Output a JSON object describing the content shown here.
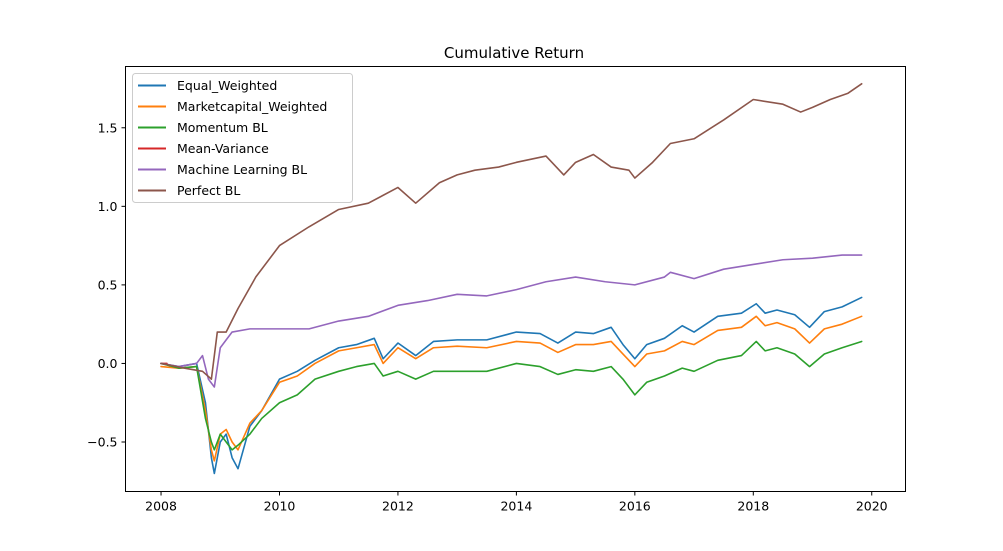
{
  "chart_data": {
    "type": "line",
    "title": "Cumulative Return",
    "xlabel": "",
    "ylabel": "",
    "xlim": [
      2007.4,
      2020.57
    ],
    "ylim": [
      -0.815,
      1.89
    ],
    "xticks": [
      2008,
      2010,
      2012,
      2014,
      2016,
      2018,
      2020
    ],
    "xtick_labels": [
      "2008",
      "2010",
      "2012",
      "2014",
      "2016",
      "2018",
      "2020"
    ],
    "yticks": [
      -0.5,
      0.0,
      0.5,
      1.0,
      1.5
    ],
    "ytick_labels": [
      "−0.5",
      "0.0",
      "0.5",
      "1.0",
      "1.5"
    ],
    "grid": false,
    "legend_position": "upper-left",
    "series": [
      {
        "name": "Equal_Weighted",
        "color": "#1f77b4",
        "x": [
          2008.0,
          2008.3,
          2008.6,
          2008.75,
          2008.85,
          2008.9,
          2009.0,
          2009.1,
          2009.2,
          2009.3,
          2009.5,
          2009.7,
          2010.0,
          2010.3,
          2010.6,
          2011.0,
          2011.3,
          2011.6,
          2011.75,
          2012.0,
          2012.3,
          2012.6,
          2013.0,
          2013.5,
          2014.0,
          2014.4,
          2014.7,
          2015.0,
          2015.3,
          2015.6,
          2015.8,
          2016.0,
          2016.2,
          2016.5,
          2016.8,
          2017.0,
          2017.4,
          2017.8,
          2018.05,
          2018.2,
          2018.4,
          2018.7,
          2018.95,
          2019.2,
          2019.5,
          2019.83
        ],
        "y": [
          0.0,
          -0.02,
          0.0,
          -0.25,
          -0.6,
          -0.7,
          -0.5,
          -0.45,
          -0.6,
          -0.67,
          -0.4,
          -0.3,
          -0.1,
          -0.05,
          0.02,
          0.1,
          0.12,
          0.16,
          0.03,
          0.13,
          0.05,
          0.14,
          0.15,
          0.15,
          0.2,
          0.19,
          0.13,
          0.2,
          0.19,
          0.23,
          0.12,
          0.03,
          0.12,
          0.16,
          0.24,
          0.2,
          0.3,
          0.32,
          0.38,
          0.32,
          0.34,
          0.31,
          0.23,
          0.33,
          0.36,
          0.42
        ]
      },
      {
        "name": "Marketcapital_Weighted",
        "color": "#ff7f0e",
        "x": [
          2008.0,
          2008.3,
          2008.6,
          2008.75,
          2008.85,
          2008.9,
          2009.0,
          2009.1,
          2009.2,
          2009.3,
          2009.5,
          2009.7,
          2010.0,
          2010.3,
          2010.6,
          2011.0,
          2011.3,
          2011.6,
          2011.75,
          2012.0,
          2012.3,
          2012.6,
          2013.0,
          2013.5,
          2014.0,
          2014.4,
          2014.7,
          2015.0,
          2015.3,
          2015.6,
          2015.8,
          2016.0,
          2016.2,
          2016.5,
          2016.8,
          2017.0,
          2017.4,
          2017.8,
          2018.05,
          2018.2,
          2018.4,
          2018.7,
          2018.95,
          2019.2,
          2019.5,
          2019.83
        ],
        "y": [
          -0.02,
          -0.03,
          -0.02,
          -0.3,
          -0.55,
          -0.62,
          -0.45,
          -0.42,
          -0.5,
          -0.55,
          -0.38,
          -0.3,
          -0.12,
          -0.08,
          0.0,
          0.08,
          0.1,
          0.12,
          0.0,
          0.1,
          0.03,
          0.1,
          0.11,
          0.1,
          0.14,
          0.13,
          0.07,
          0.12,
          0.12,
          0.14,
          0.06,
          -0.02,
          0.06,
          0.08,
          0.14,
          0.12,
          0.21,
          0.23,
          0.3,
          0.24,
          0.26,
          0.22,
          0.13,
          0.22,
          0.25,
          0.3
        ]
      },
      {
        "name": "Momentum BL",
        "color": "#2ca02c",
        "x": [
          2008.0,
          2008.3,
          2008.6,
          2008.75,
          2008.85,
          2008.9,
          2009.0,
          2009.1,
          2009.2,
          2009.3,
          2009.5,
          2009.7,
          2010.0,
          2010.3,
          2010.6,
          2011.0,
          2011.3,
          2011.6,
          2011.75,
          2012.0,
          2012.3,
          2012.6,
          2013.0,
          2013.5,
          2014.0,
          2014.4,
          2014.7,
          2015.0,
          2015.3,
          2015.6,
          2015.8,
          2016.0,
          2016.2,
          2016.5,
          2016.8,
          2017.0,
          2017.4,
          2017.8,
          2018.05,
          2018.2,
          2018.4,
          2018.7,
          2018.95,
          2019.2,
          2019.5,
          2019.83
        ],
        "y": [
          0.0,
          -0.03,
          -0.02,
          -0.35,
          -0.5,
          -0.55,
          -0.45,
          -0.5,
          -0.55,
          -0.52,
          -0.45,
          -0.35,
          -0.25,
          -0.2,
          -0.1,
          -0.05,
          -0.02,
          0.0,
          -0.08,
          -0.05,
          -0.1,
          -0.05,
          -0.05,
          -0.05,
          0.0,
          -0.02,
          -0.07,
          -0.04,
          -0.05,
          -0.02,
          -0.1,
          -0.2,
          -0.12,
          -0.08,
          -0.03,
          -0.05,
          0.02,
          0.05,
          0.14,
          0.08,
          0.1,
          0.06,
          -0.02,
          0.06,
          0.1,
          0.14
        ]
      },
      {
        "name": "Mean-Variance",
        "color": "#d62728",
        "x": [
          2008.0,
          2008.1
        ],
        "y": [
          0.0,
          0.0
        ]
      },
      {
        "name": "Machine Learning BL",
        "color": "#9467bd",
        "x": [
          2008.0,
          2008.3,
          2008.6,
          2008.7,
          2008.8,
          2008.9,
          2009.0,
          2009.2,
          2009.5,
          2010.0,
          2010.5,
          2011.0,
          2011.5,
          2012.0,
          2012.5,
          2013.0,
          2013.5,
          2014.0,
          2014.5,
          2015.0,
          2015.5,
          2016.0,
          2016.5,
          2016.6,
          2017.0,
          2017.5,
          2018.0,
          2018.5,
          2019.0,
          2019.5,
          2019.83
        ],
        "y": [
          0.0,
          -0.02,
          0.0,
          0.05,
          -0.1,
          -0.15,
          0.1,
          0.2,
          0.22,
          0.22,
          0.22,
          0.27,
          0.3,
          0.37,
          0.4,
          0.44,
          0.43,
          0.47,
          0.52,
          0.55,
          0.52,
          0.5,
          0.55,
          0.58,
          0.54,
          0.6,
          0.63,
          0.66,
          0.67,
          0.69,
          0.69
        ]
      },
      {
        "name": "Perfect BL",
        "color": "#8c564b",
        "x": [
          2008.0,
          2008.4,
          2008.7,
          2008.85,
          2008.95,
          2009.1,
          2009.3,
          2009.6,
          2010.0,
          2010.5,
          2011.0,
          2011.5,
          2012.0,
          2012.3,
          2012.7,
          2013.0,
          2013.3,
          2013.7,
          2014.0,
          2014.5,
          2014.8,
          2015.0,
          2015.3,
          2015.6,
          2015.9,
          2016.0,
          2016.3,
          2016.6,
          2017.0,
          2017.5,
          2018.0,
          2018.5,
          2018.8,
          2019.0,
          2019.3,
          2019.6,
          2019.83
        ],
        "y": [
          0.0,
          -0.03,
          -0.05,
          -0.1,
          0.2,
          0.2,
          0.35,
          0.55,
          0.75,
          0.87,
          0.98,
          1.02,
          1.12,
          1.02,
          1.15,
          1.2,
          1.23,
          1.25,
          1.28,
          1.32,
          1.2,
          1.28,
          1.33,
          1.25,
          1.23,
          1.18,
          1.28,
          1.4,
          1.43,
          1.55,
          1.68,
          1.65,
          1.6,
          1.63,
          1.68,
          1.72,
          1.78
        ]
      }
    ]
  }
}
